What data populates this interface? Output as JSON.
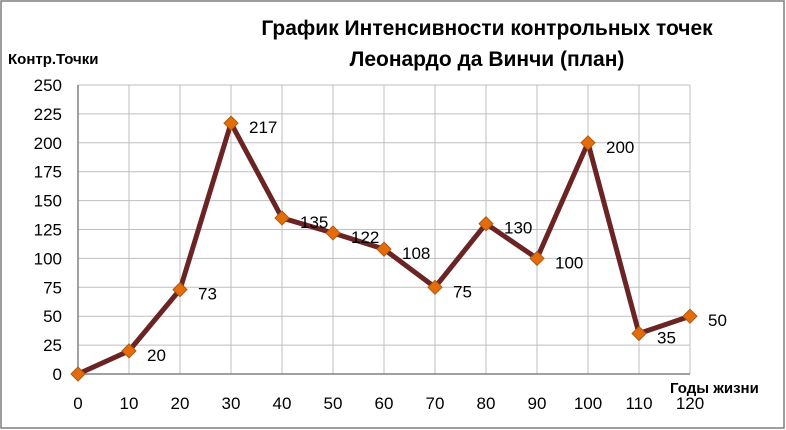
{
  "chart_data": {
    "type": "line",
    "title_lines": [
      "График Интенсивности контрольных точек",
      "Леонардо да Винчи (план)"
    ],
    "ylabel": "Контр.Точки",
    "xlabel": "Годы  жизни",
    "x": [
      0,
      10,
      20,
      30,
      40,
      50,
      60,
      70,
      80,
      90,
      100,
      110,
      120
    ],
    "x_tick_labels": [
      "0",
      "10",
      "20",
      "30",
      "40",
      "50",
      "60",
      "70",
      "80",
      "90",
      "100",
      "110",
      "120"
    ],
    "y_tick_labels": [
      "0",
      "25",
      "50",
      "75",
      "100",
      "125",
      "150",
      "175",
      "200",
      "225",
      "250"
    ],
    "xlim": [
      0,
      120
    ],
    "ylim": [
      0,
      250
    ],
    "y_step": 25,
    "grid": true,
    "series": [
      {
        "values": [
          0,
          20,
          73,
          217,
          135,
          122,
          108,
          75,
          130,
          100,
          200,
          35,
          50
        ],
        "data_labels": [
          "",
          "20",
          "73",
          "217",
          "135",
          "122",
          "108",
          "75",
          "130",
          "100",
          "200",
          "35",
          "50"
        ],
        "line_color": "#6b2424",
        "marker": "diamond",
        "marker_color": "#e46c0a",
        "marker_edge_color": "#b05a12"
      }
    ],
    "gridline_color": "#bfbfbf",
    "axis_color": "#808080"
  }
}
